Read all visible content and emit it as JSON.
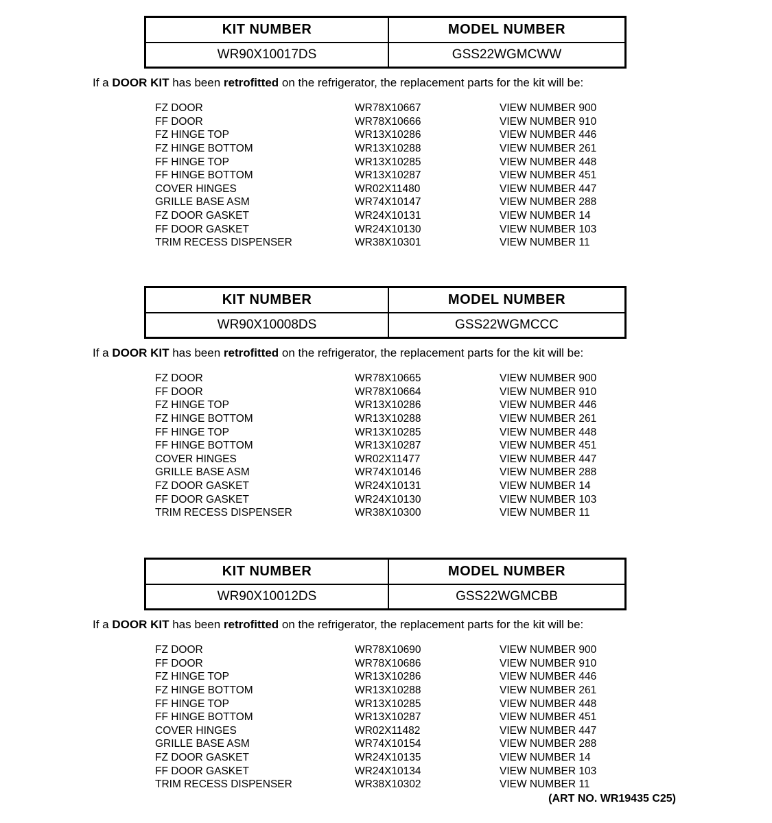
{
  "page": {
    "footer": "(ART NO. WR19435 C25)"
  },
  "sections": [
    {
      "table": {
        "kit_header": "KIT NUMBER",
        "model_header": "MODEL NUMBER",
        "kit_number": "WR90X10017DS",
        "model_number": "GSS22WGMCWW"
      },
      "note": {
        "prefix": "If a ",
        "bold1": "DOOR KIT",
        "mid": " has been ",
        "bold2": "retrofitted",
        "suffix": " on the refrigerator, the replacement parts for the kit will be:"
      },
      "parts": [
        {
          "name": "FZ DOOR",
          "part_number": "WR78X10667",
          "view": "VIEW NUMBER 900"
        },
        {
          "name": "FF DOOR",
          "part_number": "WR78X10666",
          "view": "VIEW NUMBER 910"
        },
        {
          "name": "FZ HINGE TOP",
          "part_number": "WR13X10286",
          "view": "VIEW NUMBER 446"
        },
        {
          "name": "FZ HINGE BOTTOM",
          "part_number": "WR13X10288",
          "view": "VIEW NUMBER 261"
        },
        {
          "name": "FF HINGE TOP",
          "part_number": "WR13X10285",
          "view": "VIEW NUMBER 448"
        },
        {
          "name": "FF HINGE BOTTOM",
          "part_number": "WR13X10287",
          "view": "VIEW NUMBER 451"
        },
        {
          "name": "COVER HINGES",
          "part_number": "WR02X11480",
          "view": "VIEW NUMBER 447"
        },
        {
          "name": "GRILLE BASE ASM",
          "part_number": "WR74X10147",
          "view": "VIEW NUMBER 288"
        },
        {
          "name": "FZ DOOR GASKET",
          "part_number": "WR24X10131",
          "view": "VIEW NUMBER 14"
        },
        {
          "name": "FF DOOR GASKET",
          "part_number": "WR24X10130",
          "view": "VIEW NUMBER 103"
        },
        {
          "name": "TRIM RECESS DISPENSER",
          "part_number": "WR38X10301",
          "view": "VIEW NUMBER 11"
        }
      ]
    },
    {
      "table": {
        "kit_header": "KIT NUMBER",
        "model_header": "MODEL NUMBER",
        "kit_number": "WR90X10008DS",
        "model_number": "GSS22WGMCCC"
      },
      "note": {
        "prefix": "If a ",
        "bold1": "DOOR KIT",
        "mid": " has been ",
        "bold2": "retrofitted",
        "suffix": " on the refrigerator, the replacement parts for the kit will be:"
      },
      "parts": [
        {
          "name": "FZ DOOR",
          "part_number": "WR78X10665",
          "view": "VIEW NUMBER 900"
        },
        {
          "name": "FF DOOR",
          "part_number": "WR78X10664",
          "view": "VIEW NUMBER 910"
        },
        {
          "name": "FZ HINGE TOP",
          "part_number": "WR13X10286",
          "view": "VIEW NUMBER 446"
        },
        {
          "name": "FZ HINGE BOTTOM",
          "part_number": "WR13X10288",
          "view": "VIEW NUMBER 261"
        },
        {
          "name": "FF HINGE TOP",
          "part_number": "WR13X10285",
          "view": "VIEW NUMBER 448"
        },
        {
          "name": "FF HINGE BOTTOM",
          "part_number": "WR13X10287",
          "view": "VIEW NUMBER 451"
        },
        {
          "name": "COVER HINGES",
          "part_number": "WR02X11477",
          "view": "VIEW NUMBER 447"
        },
        {
          "name": "GRILLE BASE ASM",
          "part_number": "WR74X10146",
          "view": "VIEW NUMBER 288"
        },
        {
          "name": "FZ DOOR GASKET",
          "part_number": "WR24X10131",
          "view": "VIEW NUMBER 14"
        },
        {
          "name": "FF DOOR GASKET",
          "part_number": "WR24X10130",
          "view": "VIEW NUMBER 103"
        },
        {
          "name": "TRIM RECESS DISPENSER",
          "part_number": "WR38X10300",
          "view": "VIEW NUMBER 11"
        }
      ]
    },
    {
      "table": {
        "kit_header": "KIT NUMBER",
        "model_header": "MODEL NUMBER",
        "kit_number": "WR90X10012DS",
        "model_number": "GSS22WGMCBB"
      },
      "note": {
        "prefix": "If a ",
        "bold1": "DOOR KIT",
        "mid": " has been ",
        "bold2": "retrofitted",
        "suffix": " on the refrigerator, the replacement parts for the kit will be:"
      },
      "parts": [
        {
          "name": "FZ DOOR",
          "part_number": "WR78X10690",
          "view": "VIEW NUMBER 900"
        },
        {
          "name": "FF DOOR",
          "part_number": "WR78X10686",
          "view": "VIEW NUMBER 910"
        },
        {
          "name": "FZ HINGE TOP",
          "part_number": "WR13X10286",
          "view": "VIEW NUMBER 446"
        },
        {
          "name": "FZ HINGE BOTTOM",
          "part_number": "WR13X10288",
          "view": "VIEW NUMBER 261"
        },
        {
          "name": "FF HINGE TOP",
          "part_number": "WR13X10285",
          "view": "VIEW NUMBER 448"
        },
        {
          "name": "FF HINGE BOTTOM",
          "part_number": "WR13X10287",
          "view": "VIEW NUMBER 451"
        },
        {
          "name": "COVER HINGES",
          "part_number": "WR02X11482",
          "view": "VIEW NUMBER 447"
        },
        {
          "name": "GRILLE BASE ASM",
          "part_number": "WR74X10154",
          "view": "VIEW NUMBER 288"
        },
        {
          "name": "FZ DOOR GASKET",
          "part_number": "WR24X10135",
          "view": "VIEW NUMBER 14"
        },
        {
          "name": "FF DOOR GASKET",
          "part_number": "WR24X10134",
          "view": "VIEW NUMBER 103"
        },
        {
          "name": "TRIM RECESS DISPENSER",
          "part_number": "WR38X10302",
          "view": "VIEW NUMBER 11"
        }
      ]
    }
  ]
}
